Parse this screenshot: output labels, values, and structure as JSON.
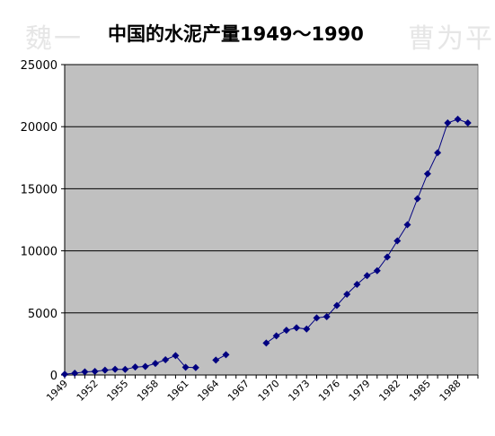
{
  "watermark_left": "魏一",
  "watermark_right": "曹为平",
  "chart_data": {
    "type": "line",
    "title": "中国的水泥产量1949～1990",
    "xlabel": "",
    "ylabel": "",
    "xlim": [
      1949,
      1990
    ],
    "ylim": [
      0,
      25000
    ],
    "y_ticks": [
      0,
      5000,
      10000,
      15000,
      20000,
      25000
    ],
    "x_ticks": [
      1949,
      1952,
      1955,
      1958,
      1961,
      1964,
      1967,
      1970,
      1973,
      1976,
      1979,
      1982,
      1985,
      1988
    ],
    "grid": true,
    "legend": "none",
    "plot_bg": "#c0c0c0",
    "series_color": "#000080",
    "series": [
      {
        "segments": [
          [
            [
              1949,
              66
            ],
            [
              1950,
              141
            ],
            [
              1951,
              249
            ],
            [
              1952,
              286
            ],
            [
              1953,
              388
            ],
            [
              1954,
              460
            ],
            [
              1955,
              450
            ],
            [
              1956,
              639
            ],
            [
              1957,
              686
            ],
            [
              1958,
              930
            ],
            [
              1959,
              1227
            ],
            [
              1960,
              1565
            ],
            [
              1961,
              621
            ],
            [
              1962,
              600
            ]
          ],
          [
            [
              1964,
              1200
            ],
            [
              1965,
              1634
            ]
          ],
          [
            [
              1969,
              2575
            ],
            [
              1970,
              3150
            ],
            [
              1971,
              3600
            ],
            [
              1972,
              3800
            ],
            [
              1973,
              3700
            ],
            [
              1974,
              4600
            ],
            [
              1975,
              4700
            ],
            [
              1976,
              5600
            ],
            [
              1977,
              6500
            ],
            [
              1978,
              7300
            ],
            [
              1979,
              8000
            ],
            [
              1980,
              8400
            ],
            [
              1981,
              9500
            ],
            [
              1982,
              10800
            ],
            [
              1983,
              12100
            ],
            [
              1984,
              14200
            ],
            [
              1985,
              16200
            ],
            [
              1986,
              17900
            ],
            [
              1987,
              20300
            ],
            [
              1988,
              20600
            ],
            [
              1989,
              20300
            ]
          ]
        ]
      }
    ]
  }
}
